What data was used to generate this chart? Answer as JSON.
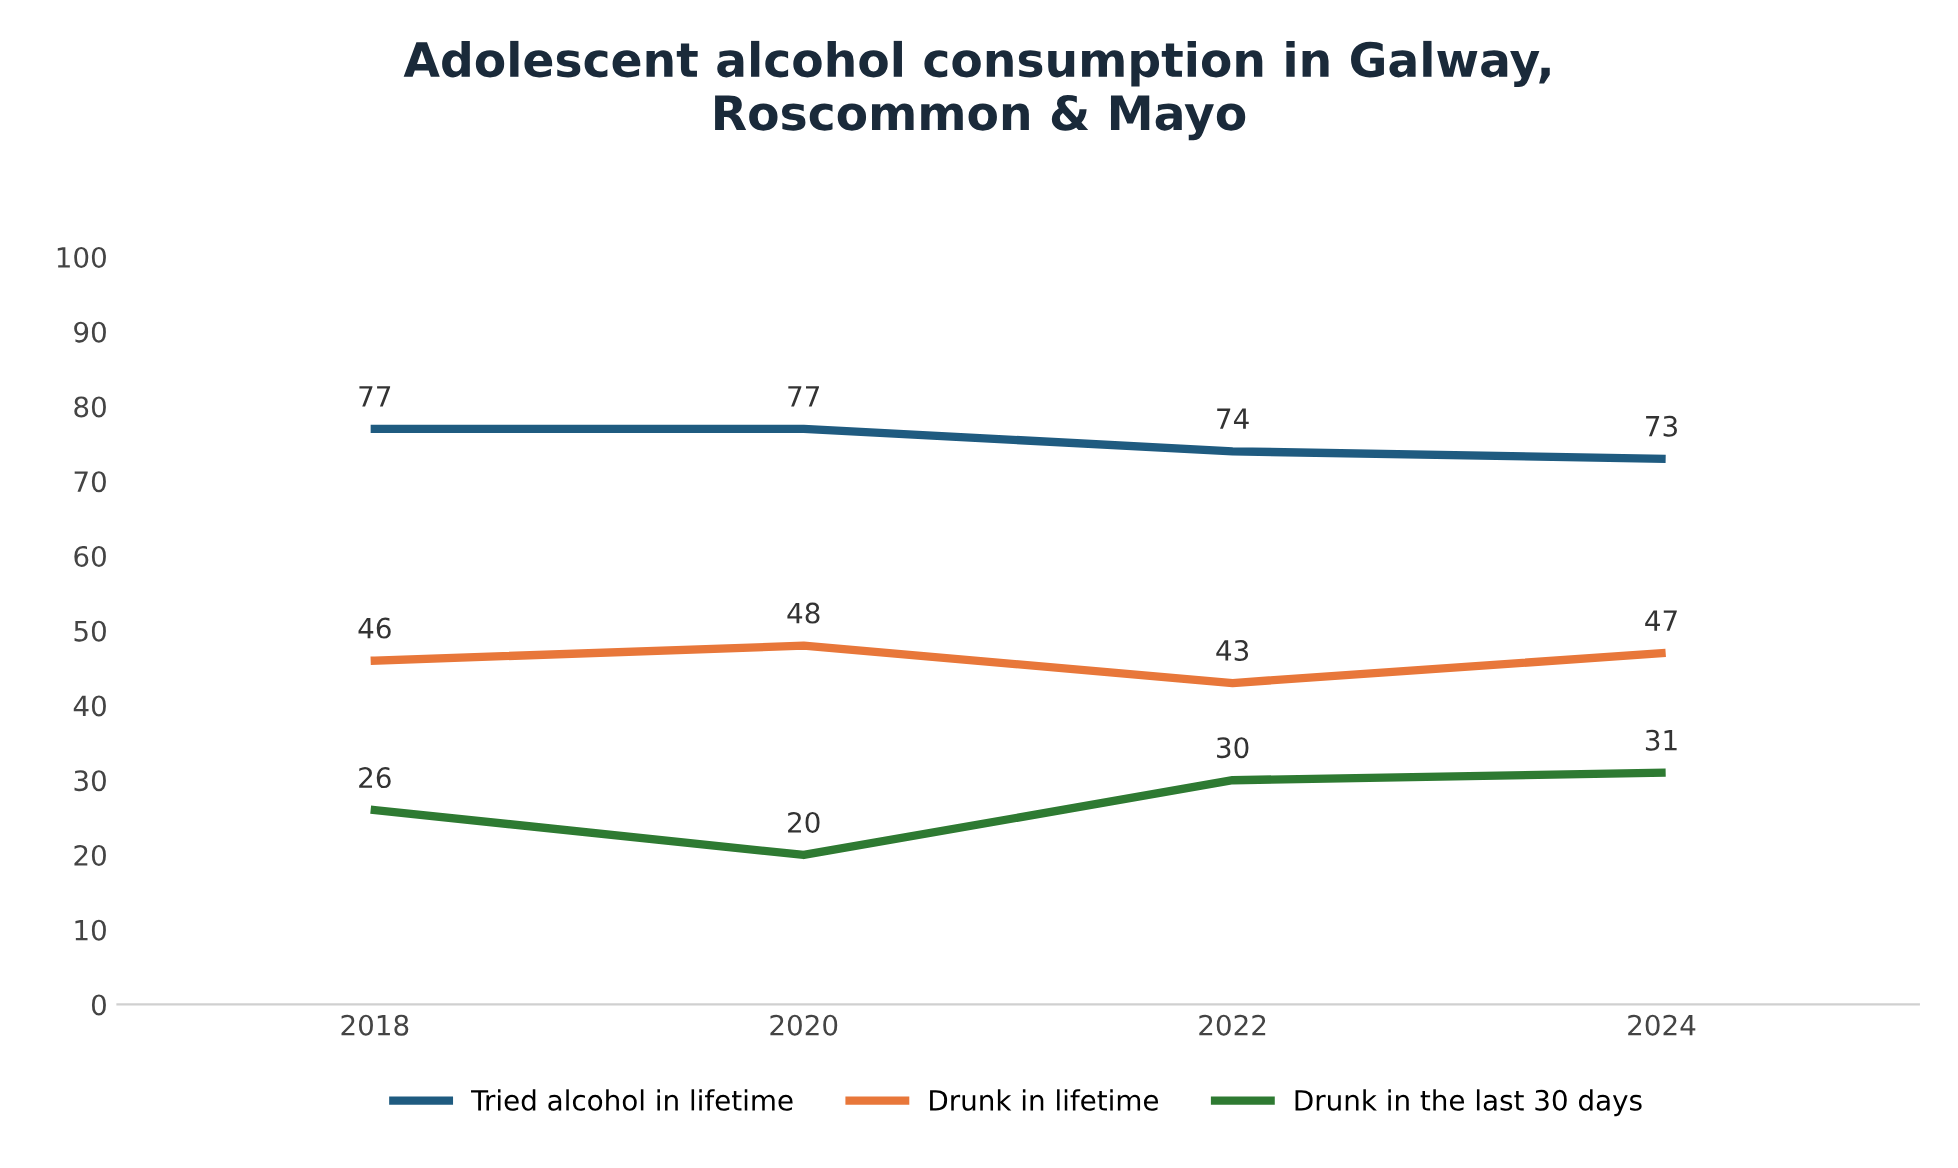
{
  "chart_data": {
    "type": "line",
    "title": "Adolescent alcohol consumption in Galway,\nRoscommon & Mayo",
    "categories": [
      "2018",
      "2020",
      "2022",
      "2024"
    ],
    "series": [
      {
        "name": "Tried alcohol in lifetime",
        "color": "#1f5b80",
        "values": [
          77,
          77,
          74,
          73
        ]
      },
      {
        "name": "Drunk in lifetime",
        "color": "#e8773a",
        "values": [
          46,
          48,
          43,
          47
        ]
      },
      {
        "name": "Drunk in the last 30 days",
        "color": "#2e7a32",
        "values": [
          26,
          20,
          30,
          31
        ]
      }
    ],
    "ylim": [
      0,
      100
    ],
    "yticks": [
      0,
      10,
      20,
      30,
      40,
      50,
      60,
      70,
      80,
      90,
      100
    ],
    "data_labels": true,
    "legend": "bottom",
    "grid": false
  }
}
